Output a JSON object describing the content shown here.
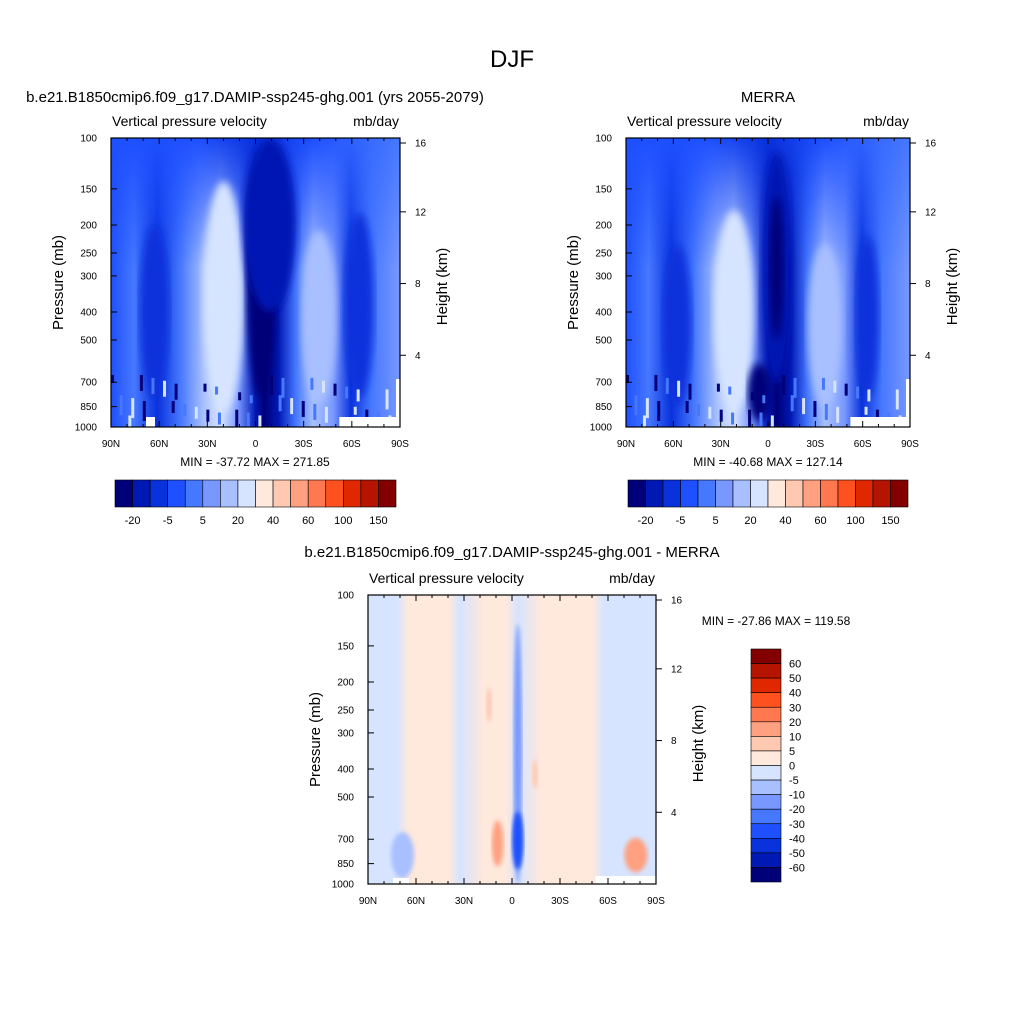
{
  "page_title": "DJF",
  "chart_data": [
    {
      "type": "heatmap",
      "title": "b.e21.B1850cmip6.f09_g17.DAMIP-ssp245-ghg.001 (yrs 2055-2079)",
      "left_label": "Vertical pressure velocity",
      "right_label": "mb/day",
      "ylabel": "Pressure (mb)",
      "y2label": "Height (km)",
      "x_ticks": [
        "90N",
        "60N",
        "30N",
        "0",
        "30S",
        "60S",
        "90S"
      ],
      "xlim": [
        90,
        -90
      ],
      "y_ticks": [
        100,
        150,
        200,
        250,
        300,
        400,
        500,
        700,
        850,
        1000
      ],
      "ylim": [
        100,
        1000
      ],
      "height_ticks": [
        4,
        8,
        12,
        16
      ],
      "stats": "MIN = -37.72  MAX = 271.85",
      "min": -37.72,
      "max": 271.85,
      "colorbar_labels": [
        "-20",
        "-5",
        "5",
        "20",
        "40",
        "60",
        "100",
        "150"
      ]
    },
    {
      "type": "heatmap",
      "title": "MERRA",
      "left_label": "Vertical pressure velocity",
      "right_label": "mb/day",
      "ylabel": "Pressure (mb)",
      "y2label": "Height (km)",
      "x_ticks": [
        "90N",
        "60N",
        "30N",
        "0",
        "30S",
        "60S",
        "90S"
      ],
      "xlim": [
        90,
        -90
      ],
      "y_ticks": [
        100,
        150,
        200,
        250,
        300,
        400,
        500,
        700,
        850,
        1000
      ],
      "ylim": [
        100,
        1000
      ],
      "height_ticks": [
        4,
        8,
        12,
        16
      ],
      "stats": "MIN = -40.68  MAX = 127.14",
      "min": -40.68,
      "max": 127.14,
      "colorbar_labels": [
        "-20",
        "-5",
        "5",
        "20",
        "40",
        "60",
        "100",
        "150"
      ]
    },
    {
      "type": "heatmap",
      "title": "b.e21.B1850cmip6.f09_g17.DAMIP-ssp245-ghg.001 - MERRA",
      "left_label": "Vertical pressure velocity",
      "right_label": "mb/day",
      "ylabel": "Pressure (mb)",
      "y2label": "Height (km)",
      "x_ticks": [
        "90N",
        "60N",
        "30N",
        "0",
        "30S",
        "60S",
        "90S"
      ],
      "xlim": [
        90,
        -90
      ],
      "y_ticks": [
        100,
        150,
        200,
        250,
        300,
        400,
        500,
        700,
        850,
        1000
      ],
      "ylim": [
        100,
        1000
      ],
      "height_ticks": [
        4,
        8,
        12,
        16
      ],
      "stats": "MIN = -27.86  MAX = 119.58",
      "min": -27.86,
      "max": 119.58,
      "colorbar_labels": [
        "60",
        "50",
        "40",
        "30",
        "20",
        "10",
        "5",
        "0",
        "-5",
        "-10",
        "-20",
        "-30",
        "-40",
        "-50",
        "-60"
      ]
    }
  ],
  "colors": {
    "abs_colorbar": [
      "#000078",
      "#0018b4",
      "#0a32dc",
      "#1e50ff",
      "#4678ff",
      "#7898ff",
      "#a8c0ff",
      "#d6e4ff",
      "#ffe8dc",
      "#ffc8b0",
      "#ffa080",
      "#ff7850",
      "#ff5020",
      "#e02800",
      "#b41400",
      "#820000"
    ],
    "diff_colorbar": [
      "#820000",
      "#b41400",
      "#e02800",
      "#ff5020",
      "#ff7850",
      "#ffa080",
      "#ffc8b0",
      "#ffe8dc",
      "#d6e4ff",
      "#a8c0ff",
      "#7898ff",
      "#4678ff",
      "#1e50ff",
      "#0a32dc",
      "#0018b4",
      "#000078"
    ]
  }
}
